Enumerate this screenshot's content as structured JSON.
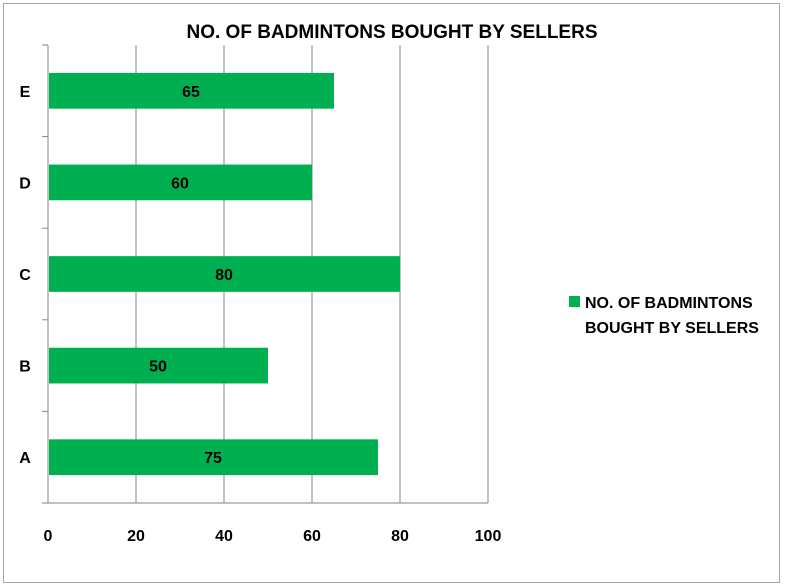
{
  "chart_data": {
    "type": "bar",
    "orientation": "horizontal",
    "title": "NO. OF BADMINTONS BOUGHT BY SELLERS",
    "categories": [
      "A",
      "B",
      "C",
      "D",
      "E"
    ],
    "series": [
      {
        "name": "NO. OF BADMINTONS BOUGHT BY SELLERS",
        "values": [
          75,
          50,
          80,
          60,
          65
        ],
        "color": "#00b050"
      }
    ],
    "xlim": [
      0,
      100
    ],
    "x_ticks": [
      0,
      20,
      40,
      60,
      80,
      100
    ],
    "grid": true,
    "data_labels": true,
    "legend_position": "right",
    "legend_lines": [
      "NO. OF BADMINTONS",
      "BOUGHT BY SELLERS"
    ]
  }
}
